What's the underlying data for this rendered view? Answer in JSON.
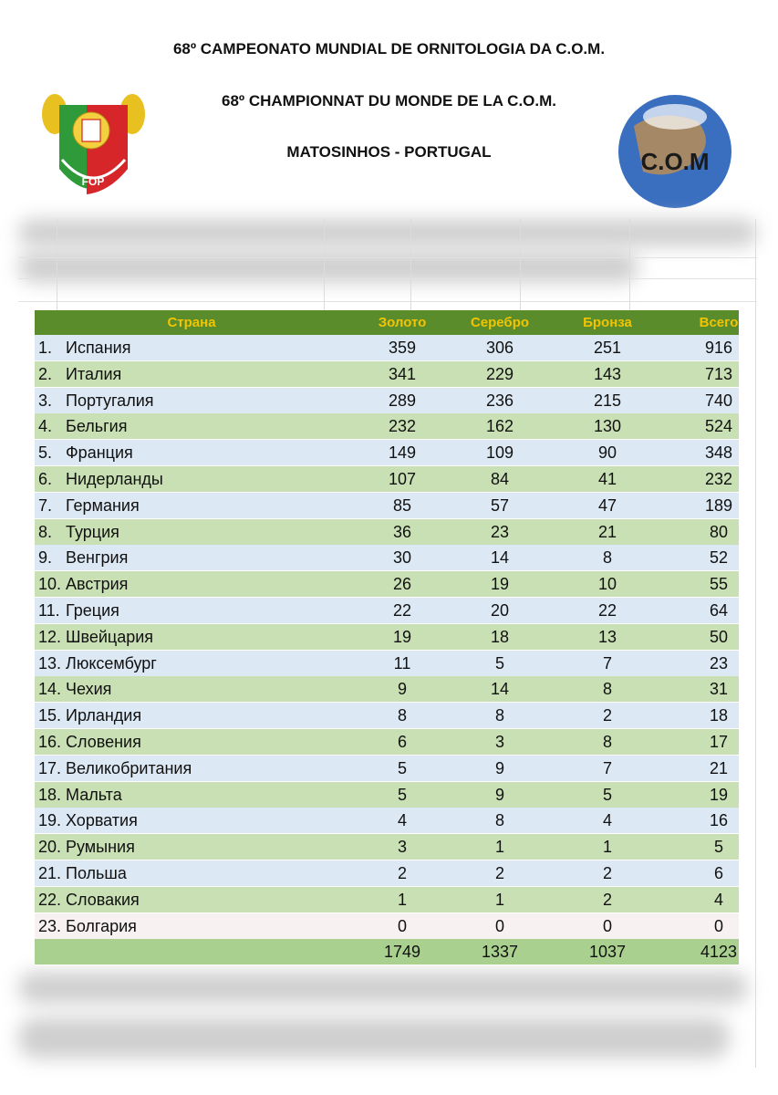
{
  "header": {
    "lines": [
      "68º CAMPEONATO MUNDIAL DE ORNITOLOGIA DA C.O.M.",
      "68º CHAMPIONNAT DU MONDE DE LA C.O.M.",
      "MATOSINHOS - PORTUGAL"
    ],
    "left_logo": {
      "text": "FOP"
    },
    "right_logo": {
      "text": "C.O.M"
    }
  },
  "table": {
    "columns": [
      "Страна",
      "Золото",
      "Серебро",
      "Бронза",
      "Всего"
    ],
    "rows": [
      [
        "1.",
        "Испания",
        359,
        306,
        251,
        916
      ],
      [
        "2.",
        "Италия",
        341,
        229,
        143,
        713
      ],
      [
        "3.",
        "Португалия",
        289,
        236,
        215,
        740
      ],
      [
        "4.",
        "Бельгия",
        232,
        162,
        130,
        524
      ],
      [
        "5.",
        "Франция",
        149,
        109,
        90,
        348
      ],
      [
        "6.",
        "Нидерланды",
        107,
        84,
        41,
        232
      ],
      [
        "7.",
        "Германия",
        85,
        57,
        47,
        189
      ],
      [
        "8.",
        "Турция",
        36,
        23,
        21,
        80
      ],
      [
        "9.",
        "Венгрия",
        30,
        14,
        8,
        52
      ],
      [
        "10.",
        "Австрия",
        26,
        19,
        10,
        55
      ],
      [
        "11.",
        "Греция",
        22,
        20,
        22,
        64
      ],
      [
        "12.",
        "Швейцария",
        19,
        18,
        13,
        50
      ],
      [
        "13.",
        "Люксембург",
        11,
        5,
        7,
        23
      ],
      [
        "14.",
        "Чехия",
        9,
        14,
        8,
        31
      ],
      [
        "15.",
        "Ирландия",
        8,
        8,
        2,
        18
      ],
      [
        "16.",
        "Словения",
        6,
        3,
        8,
        17
      ],
      [
        "17.",
        "Великобритания",
        5,
        9,
        7,
        21
      ],
      [
        "18.",
        "Мальта",
        5,
        9,
        5,
        19
      ],
      [
        "19.",
        "Хорватия",
        4,
        8,
        4,
        16
      ],
      [
        "20.",
        "Румыния",
        3,
        1,
        1,
        5
      ],
      [
        "21.",
        "Польша",
        2,
        2,
        2,
        6
      ],
      [
        "22.",
        "Словакия",
        1,
        1,
        2,
        4
      ],
      [
        "23.",
        "Болгария",
        0,
        0,
        0,
        0
      ]
    ],
    "totals": [
      1749,
      1337,
      1037,
      4123
    ]
  }
}
